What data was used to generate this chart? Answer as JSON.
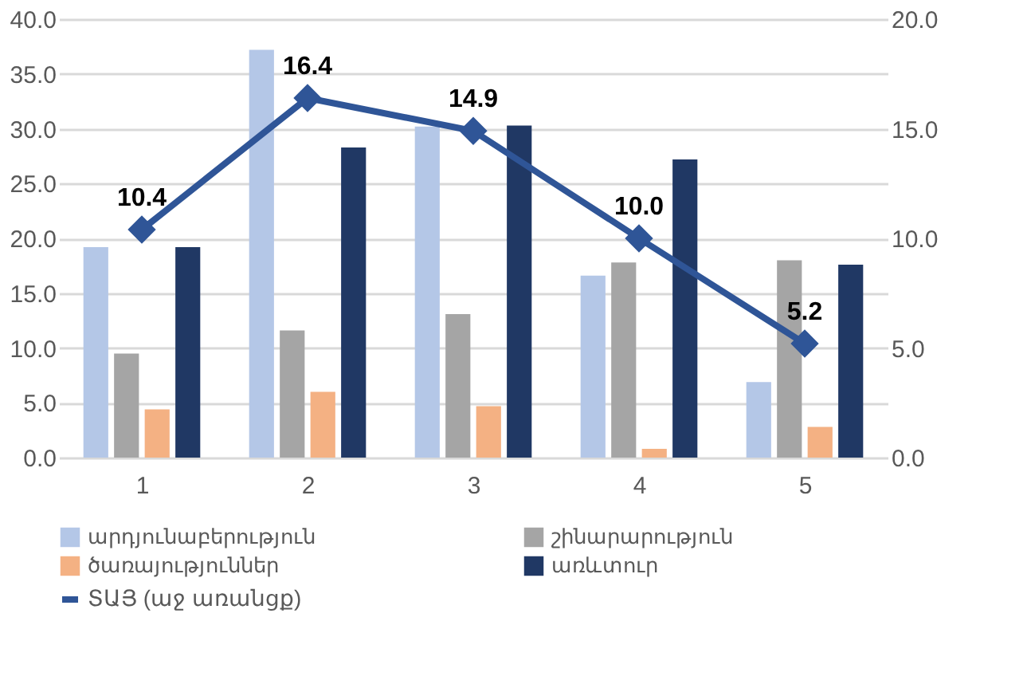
{
  "chart_data": {
    "type": "bar",
    "categories": [
      "1",
      "2",
      "3",
      "4",
      "5"
    ],
    "series": [
      {
        "name": "արդյունաբերություն",
        "color": "#b4c7e7",
        "values": [
          19.2,
          37.2,
          30.2,
          16.6,
          6.9
        ]
      },
      {
        "name": "շինարարություն",
        "color": "#a5a5a5",
        "values": [
          9.5,
          11.6,
          13.1,
          17.8,
          18.0
        ]
      },
      {
        "name": "ծառայություններ",
        "color": "#f4b183",
        "values": [
          4.4,
          6.0,
          4.7,
          0.8,
          2.8
        ]
      },
      {
        "name": "առևտուր",
        "color": "#203864",
        "values": [
          19.2,
          28.3,
          30.3,
          27.2,
          17.6
        ]
      },
      {
        "name": "ՏԱՅ (աջ առանցք)",
        "color": "#2f5597",
        "type": "line",
        "axis": "y2",
        "marker": "diamond",
        "values": [
          10.4,
          16.4,
          14.9,
          10.0,
          5.2
        ],
        "value_labels": [
          "10.4",
          "16.4",
          "14.9",
          "10.0",
          "5.2"
        ]
      }
    ],
    "ylim": [
      0,
      40
    ],
    "yticks": [
      {
        "value": 0,
        "label": "0.0"
      },
      {
        "value": 5,
        "label": "5.0"
      },
      {
        "value": 10,
        "label": "10.0"
      },
      {
        "value": 15,
        "label": "15.0"
      },
      {
        "value": 20,
        "label": "20.0"
      },
      {
        "value": 25,
        "label": "25.0"
      },
      {
        "value": 30,
        "label": "30.0"
      },
      {
        "value": 35,
        "label": "35.0"
      },
      {
        "value": 40,
        "label": "40.0"
      }
    ],
    "y2lim": [
      0,
      20
    ],
    "y2ticks": [
      {
        "value": 0,
        "label": "0.0"
      },
      {
        "value": 5,
        "label": "5.0"
      },
      {
        "value": 10,
        "label": "10.0"
      },
      {
        "value": 15,
        "label": "15.0"
      },
      {
        "value": 20,
        "label": "20.0"
      }
    ],
    "grid": "y",
    "legend": "bottom"
  }
}
